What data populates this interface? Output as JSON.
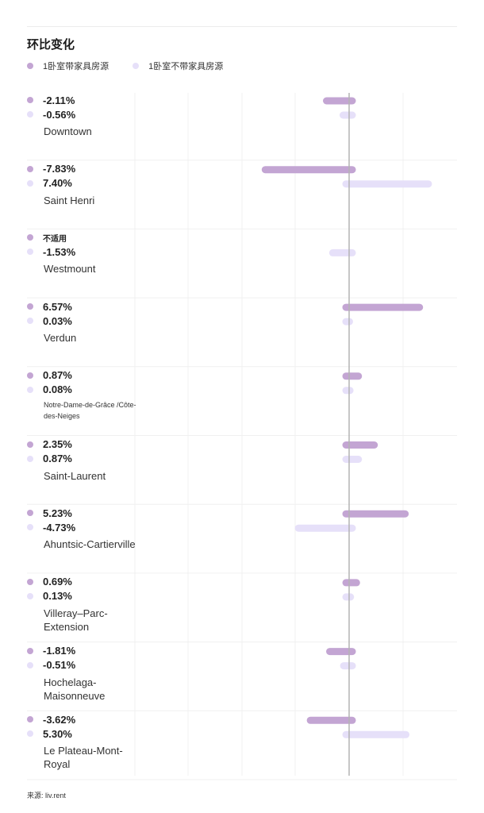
{
  "title": "环比变化",
  "legend": {
    "series1": "1卧室带家具房源",
    "series2": "1卧室不带家具房源"
  },
  "colors": {
    "series1": "#c3a5d3",
    "series2": "#e6e0f9",
    "zero_line": "#b3b3b3",
    "grid": "#f0f0f0"
  },
  "source": "来源: liv.rent",
  "rows": [
    {
      "v1": "-2.11%",
      "v2": "-0.56%",
      "label": "Downtown"
    },
    {
      "v1": "-7.83%",
      "v2": "7.40%",
      "label": "Saint Henri"
    },
    {
      "v1": "不适用",
      "v2": "-1.53%",
      "label": "Westmount"
    },
    {
      "v1": "6.57%",
      "v2": "0.03%",
      "label": "Verdun"
    },
    {
      "v1": "0.87%",
      "v2": "0.08%",
      "label": "Notre-Dame-de-Grâce /Côte-des-Neiges"
    },
    {
      "v1": "2.35%",
      "v2": "0.87%",
      "label": "Saint-Laurent"
    },
    {
      "v1": "5.23%",
      "v2": "-4.73%",
      "label": "Ahuntsic-Cartierville"
    },
    {
      "v1": "0.69%",
      "v2": "0.13%",
      "label": "Villeray–Parc-Extension"
    },
    {
      "v1": "-1.81%",
      "v2": "-0.51%",
      "label": "Hochelaga-Maisonneuve"
    },
    {
      "v1": "-3.62%",
      "v2": "5.30%",
      "label": "Le Plateau-Mont-Royal"
    }
  ],
  "chart_data": {
    "type": "bar",
    "orientation": "horizontal",
    "title": "环比变化",
    "xlabel": "",
    "ylabel": "",
    "xlim": [
      -10,
      10
    ],
    "grid": true,
    "categories": [
      "Downtown",
      "Saint Henri",
      "Westmount",
      "Verdun",
      "Notre-Dame-de-Grâce /Côte-des-Neiges",
      "Saint-Laurent",
      "Ahuntsic-Cartierville",
      "Villeray–Parc-Extension",
      "Hochelaga-Maisonneuve",
      "Le Plateau-Mont-Royal"
    ],
    "series": [
      {
        "name": "1卧室带家具房源",
        "values": [
          -2.11,
          -7.83,
          null,
          6.57,
          0.87,
          2.35,
          5.23,
          0.69,
          -1.81,
          -3.62
        ]
      },
      {
        "name": "1卧室不带家具房源",
        "values": [
          -0.56,
          7.4,
          -1.53,
          0.03,
          0.08,
          0.87,
          -4.73,
          0.13,
          -0.51,
          5.3
        ]
      }
    ]
  }
}
